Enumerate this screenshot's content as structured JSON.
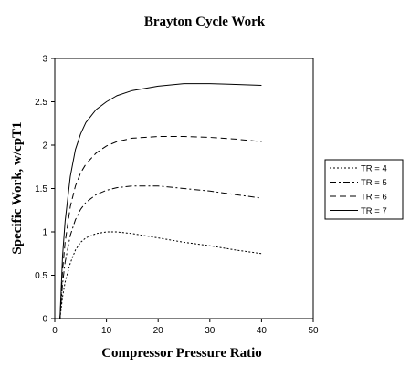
{
  "chart_data": {
    "type": "line",
    "title": "Brayton Cycle Work",
    "xlabel": "Compressor Pressure Ratio",
    "ylabel": "Specific Work, w/cpT1",
    "xlim": [
      0,
      50
    ],
    "ylim": [
      0,
      3
    ],
    "xticks": [
      0,
      10,
      20,
      30,
      40,
      50
    ],
    "yticks": [
      0,
      0.5,
      1,
      1.5,
      2,
      2.5,
      3
    ],
    "grid": false,
    "legend_position": "right",
    "series": [
      {
        "name": "TR = 4",
        "dash": "dotted",
        "x": [
          1,
          1.5,
          2,
          3,
          4,
          5,
          6,
          8,
          10,
          12,
          15,
          20,
          25,
          30,
          35,
          40
        ],
        "y": [
          0,
          0.25,
          0.42,
          0.64,
          0.79,
          0.88,
          0.93,
          0.98,
          1.0,
          1.0,
          0.98,
          0.93,
          0.88,
          0.84,
          0.79,
          0.75
        ]
      },
      {
        "name": "TR = 5",
        "dash": "dash-dot",
        "x": [
          1,
          1.5,
          2,
          3,
          4,
          5,
          6,
          8,
          10,
          12,
          15,
          20,
          25,
          30,
          35,
          40
        ],
        "y": [
          0,
          0.4,
          0.65,
          0.96,
          1.14,
          1.26,
          1.34,
          1.43,
          1.48,
          1.51,
          1.53,
          1.53,
          1.5,
          1.47,
          1.43,
          1.39
        ]
      },
      {
        "name": "TR = 6",
        "dash": "dashed",
        "x": [
          1,
          1.5,
          2,
          3,
          4,
          5,
          6,
          8,
          10,
          12,
          15,
          20,
          25,
          30,
          35,
          40
        ],
        "y": [
          0,
          0.55,
          0.88,
          1.29,
          1.53,
          1.68,
          1.78,
          1.91,
          1.99,
          2.04,
          2.08,
          2.1,
          2.1,
          2.09,
          2.07,
          2.04
        ]
      },
      {
        "name": "TR = 7",
        "dash": "solid",
        "x": [
          1,
          1.5,
          2,
          3,
          4,
          5,
          6,
          8,
          10,
          12,
          15,
          20,
          25,
          30,
          35,
          40
        ],
        "y": [
          0,
          0.72,
          1.12,
          1.64,
          1.95,
          2.13,
          2.26,
          2.41,
          2.5,
          2.57,
          2.63,
          2.68,
          2.71,
          2.71,
          2.7,
          2.69
        ]
      }
    ]
  }
}
